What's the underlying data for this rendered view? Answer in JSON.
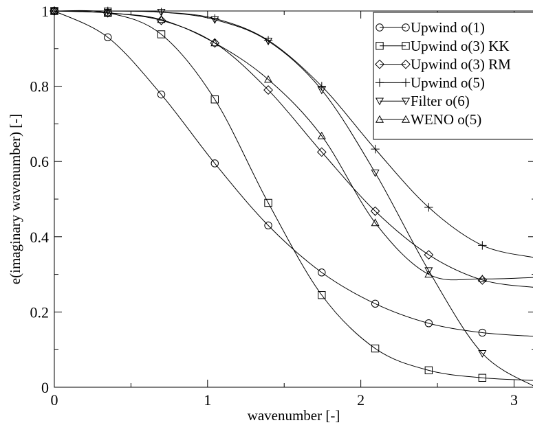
{
  "chart_data": {
    "type": "line",
    "xlabel": "wavenumber [-]",
    "ylabel": "e(imaginary wavenumber) [-]",
    "xlim": [
      0,
      3.14159
    ],
    "ylim": [
      0,
      1
    ],
    "x_ticks": [
      "0",
      "1",
      "2",
      "3"
    ],
    "y_ticks": [
      "0",
      "0.2",
      "0.4",
      "0.6",
      "0.8",
      "1"
    ],
    "grid": false,
    "legend_position": "top-right",
    "series": [
      {
        "name": "Upwind o(1)",
        "marker": "circle",
        "x": [
          0.0,
          0.349,
          0.698,
          1.047,
          1.396,
          1.745,
          2.094,
          2.443,
          2.793,
          3.142
        ],
        "values": [
          1.0,
          0.93,
          0.778,
          0.595,
          0.43,
          0.305,
          0.222,
          0.17,
          0.145,
          0.135
        ]
      },
      {
        "name": "Upwind o(3) KK",
        "marker": "square",
        "x": [
          0.0,
          0.349,
          0.698,
          1.047,
          1.396,
          1.745,
          2.094,
          2.443,
          2.793,
          3.142
        ],
        "values": [
          1.0,
          0.995,
          0.938,
          0.765,
          0.49,
          0.245,
          0.103,
          0.045,
          0.025,
          0.018
        ]
      },
      {
        "name": "Upwind o(3) RM",
        "marker": "diamond",
        "x": [
          0.0,
          0.349,
          0.698,
          1.047,
          1.396,
          1.745,
          2.094,
          2.443,
          2.793,
          3.142
        ],
        "values": [
          1.0,
          0.995,
          0.975,
          0.915,
          0.79,
          0.625,
          0.468,
          0.352,
          0.285,
          0.265
        ]
      },
      {
        "name": "Upwind o(5)",
        "marker": "plus",
        "x": [
          0.0,
          0.349,
          0.698,
          1.047,
          1.396,
          1.745,
          2.094,
          2.443,
          2.793,
          3.142
        ],
        "values": [
          1.0,
          1.0,
          0.997,
          0.98,
          0.922,
          0.8,
          0.633,
          0.478,
          0.377,
          0.344
        ]
      },
      {
        "name": "Filter o(6)",
        "marker": "triangle-down",
        "x": [
          0.0,
          0.349,
          0.698,
          1.047,
          1.396,
          1.745,
          2.094,
          2.443,
          2.793,
          3.142
        ],
        "values": [
          1.0,
          1.0,
          0.997,
          0.977,
          0.92,
          0.79,
          0.57,
          0.31,
          0.09,
          0.0
        ]
      },
      {
        "name": "WENO o(5)",
        "marker": "triangle-up",
        "x": [
          0.0,
          0.349,
          0.698,
          1.047,
          1.396,
          1.745,
          2.094,
          2.443,
          2.793,
          3.142
        ],
        "values": [
          1.0,
          0.995,
          0.977,
          0.915,
          0.818,
          0.668,
          0.437,
          0.3,
          0.288,
          0.292
        ]
      }
    ]
  }
}
